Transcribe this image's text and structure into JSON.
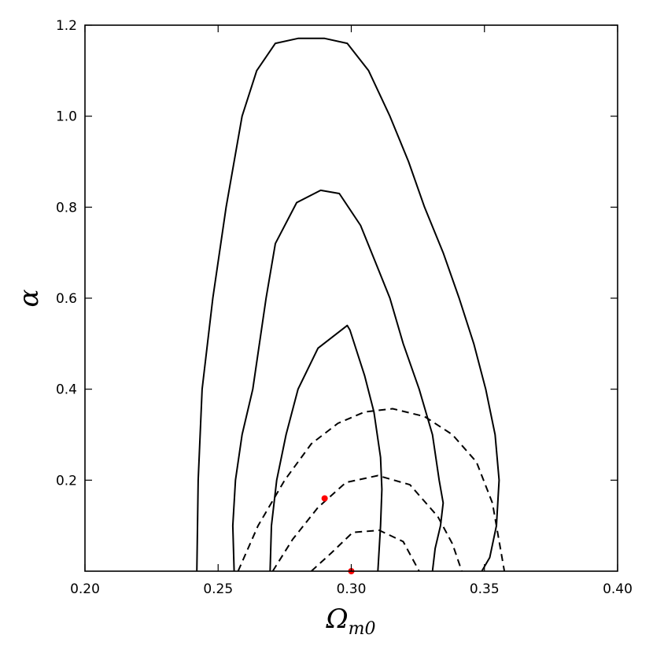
{
  "chart_data": {
    "type": "line",
    "chart_kind": "contour",
    "xlabel": "Ω",
    "xlabel_sub": "m0",
    "ylabel": "α",
    "xlim": [
      0.2,
      0.4
    ],
    "ylim": [
      0.0,
      1.2
    ],
    "xticks": [
      "0.20",
      "0.25",
      "0.30",
      "0.35",
      "0.40"
    ],
    "xtick_values": [
      0.2,
      0.25,
      0.3,
      0.35,
      0.4
    ],
    "yticks": [
      "0.2",
      "0.4",
      "0.6",
      "0.8",
      "1.0",
      "1.2"
    ],
    "ytick_values": [
      0.2,
      0.4,
      0.6,
      0.8,
      1.0,
      1.2
    ],
    "grid": false,
    "line_color": "#000000",
    "marker_color": "#ff0000",
    "series": [
      {
        "style": "solid",
        "x": [
          0.242,
          0.2425,
          0.244,
          0.248,
          0.253,
          0.259,
          0.2645,
          0.2715,
          0.28,
          0.29,
          0.2985,
          0.3065,
          0.3145,
          0.3215,
          0.3275,
          0.3345,
          0.3405,
          0.346,
          0.3505,
          0.354,
          0.3555,
          0.3545,
          0.352,
          0.349
        ],
        "y": [
          0.0,
          0.2,
          0.4,
          0.6,
          0.8,
          1.0,
          1.1,
          1.16,
          1.171,
          1.171,
          1.16,
          1.1,
          1.0,
          0.9,
          0.8,
          0.7,
          0.6,
          0.5,
          0.4,
          0.3,
          0.2,
          0.1,
          0.03,
          0.0
        ]
      },
      {
        "style": "solid",
        "x": [
          0.256,
          0.2555,
          0.2565,
          0.259,
          0.263,
          0.268,
          0.2715,
          0.2795,
          0.2885,
          0.2955,
          0.3035,
          0.309,
          0.3145,
          0.3195,
          0.3255,
          0.3305,
          0.333,
          0.3345,
          0.3335,
          0.3315,
          0.3305
        ],
        "y": [
          0.0,
          0.1,
          0.2,
          0.3,
          0.4,
          0.6,
          0.72,
          0.81,
          0.837,
          0.83,
          0.76,
          0.68,
          0.6,
          0.5,
          0.4,
          0.3,
          0.2,
          0.15,
          0.1,
          0.05,
          0.0
        ]
      },
      {
        "style": "solid",
        "x": [
          0.2695,
          0.27,
          0.272,
          0.2755,
          0.28,
          0.2875,
          0.2985,
          0.2995,
          0.305,
          0.3085,
          0.311,
          0.3115,
          0.311,
          0.31
        ],
        "y": [
          0.0,
          0.1,
          0.2,
          0.3,
          0.4,
          0.49,
          0.54,
          0.53,
          0.43,
          0.35,
          0.25,
          0.18,
          0.1,
          0.0
        ]
      },
      {
        "style": "dashed",
        "x": [
          0.2575,
          0.265,
          0.275,
          0.285,
          0.295,
          0.305,
          0.3155,
          0.3275,
          0.338,
          0.347,
          0.353,
          0.3575
        ],
        "y": [
          0.0,
          0.1,
          0.2,
          0.28,
          0.325,
          0.35,
          0.357,
          0.34,
          0.3,
          0.24,
          0.15,
          0.0
        ]
      },
      {
        "style": "dashed",
        "x": [
          0.2705,
          0.278,
          0.2875,
          0.298,
          0.31,
          0.322,
          0.3325,
          0.338,
          0.3415
        ],
        "y": [
          0.0,
          0.07,
          0.14,
          0.195,
          0.21,
          0.19,
          0.12,
          0.06,
          0.0
        ]
      },
      {
        "style": "dashed",
        "x": [
          0.285,
          0.2925,
          0.3005,
          0.3105,
          0.3195,
          0.3255
        ],
        "y": [
          0.0,
          0.04,
          0.085,
          0.09,
          0.065,
          0.0
        ]
      }
    ],
    "points": [
      {
        "x": 0.29,
        "y": 0.16
      },
      {
        "x": 0.3,
        "y": 0.0
      }
    ]
  }
}
